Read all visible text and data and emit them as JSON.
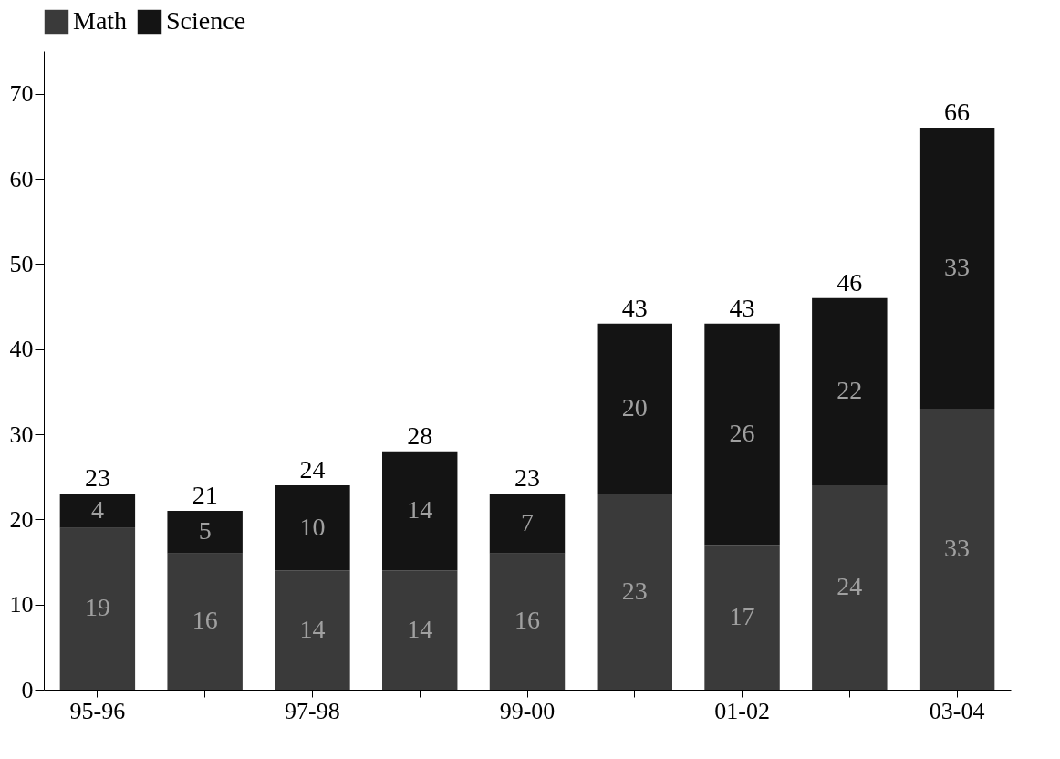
{
  "chart_data": {
    "type": "bar",
    "stacked": true,
    "categories": [
      "95-96",
      null,
      "97-98",
      null,
      "99-00",
      null,
      "01-02",
      null,
      "03-04"
    ],
    "series": [
      {
        "name": "Math",
        "color": "#3a3a3a",
        "values": [
          19,
          16,
          14,
          14,
          16,
          23,
          17,
          24,
          33
        ]
      },
      {
        "name": "Science",
        "color": "#141414",
        "values": [
          4,
          5,
          10,
          14,
          7,
          20,
          26,
          22,
          33
        ]
      }
    ],
    "totals": [
      "23",
      "21",
      "24",
      "28",
      "23",
      "43",
      "43",
      "46",
      "66"
    ],
    "data_labels": true,
    "ylim": [
      0,
      75
    ],
    "yticks": [
      0,
      10,
      20,
      30,
      40,
      50,
      60,
      70
    ],
    "grid": false,
    "legend": "top"
  }
}
